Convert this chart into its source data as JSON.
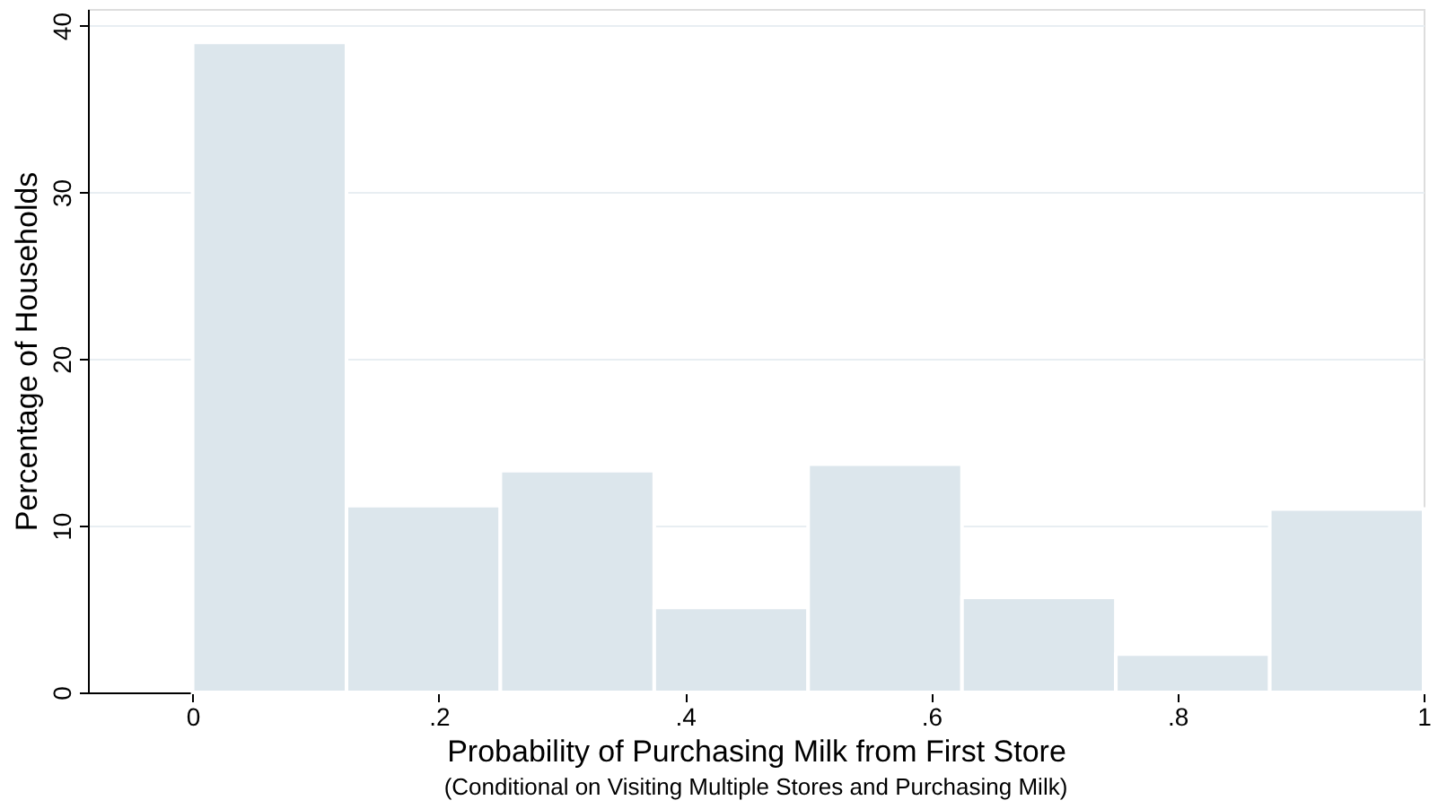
{
  "chart_data": {
    "type": "histogram",
    "xlabel": "Probability of Purchasing Milk from First Store",
    "ylabel": "Percentage of Households",
    "annotations": [
      "(Conditional on Visiting Multiple Stores and Purchasing Milk)"
    ],
    "bins": [
      0,
      0.125,
      0.25,
      0.375,
      0.5,
      0.625,
      0.75,
      0.875,
      1
    ],
    "values": [
      39,
      11.2,
      13.3,
      5.1,
      13.7,
      5.7,
      2.3,
      11.0
    ],
    "color": "#dce6ec",
    "xlim": [
      -0.085,
      1.0
    ],
    "xticks": [
      0,
      {
        "value": 0.2,
        "label": ".2"
      },
      {
        "value": 0.4,
        "label": ".4"
      },
      {
        "value": 0.6,
        "label": ".6"
      },
      {
        "value": 0.8,
        "label": ".8"
      },
      1
    ],
    "ylim": [
      0,
      41
    ],
    "yticks": [
      0,
      10,
      20,
      30,
      40
    ],
    "grid": "y"
  }
}
